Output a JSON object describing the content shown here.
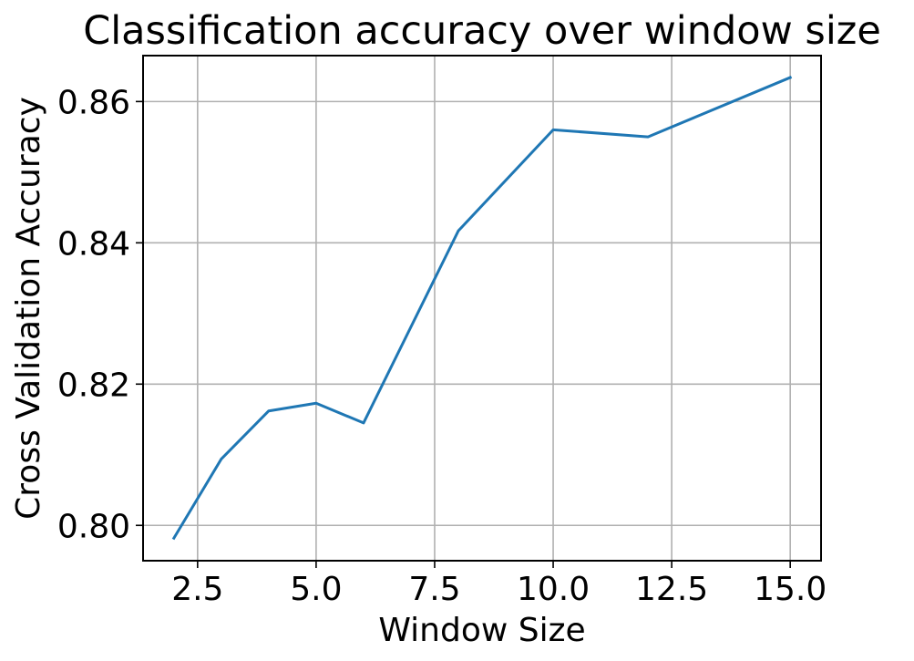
{
  "chart_data": {
    "type": "line",
    "title": "Classification accuracy over window size",
    "xlabel": "Window Size",
    "ylabel": "Cross Validation Accuracy",
    "xlim": [
      1.35,
      15.65
    ],
    "ylim": [
      0.795,
      0.8665
    ],
    "xticks": [
      2.5,
      5.0,
      7.5,
      10.0,
      12.5,
      15.0
    ],
    "xtick_labels": [
      "2.5",
      "5.0",
      "7.5",
      "10.0",
      "12.5",
      "15.0"
    ],
    "yticks": [
      0.8,
      0.82,
      0.84,
      0.86
    ],
    "ytick_labels": [
      "0.80",
      "0.82",
      "0.84",
      "0.86"
    ],
    "grid": true,
    "series": [
      {
        "color": "#1f77b4",
        "x": [
          2,
          3,
          4,
          5,
          6,
          8,
          10,
          12,
          15
        ],
        "y": [
          0.7982,
          0.8094,
          0.8162,
          0.8173,
          0.8145,
          0.8417,
          0.856,
          0.855,
          0.8634
        ]
      }
    ]
  }
}
